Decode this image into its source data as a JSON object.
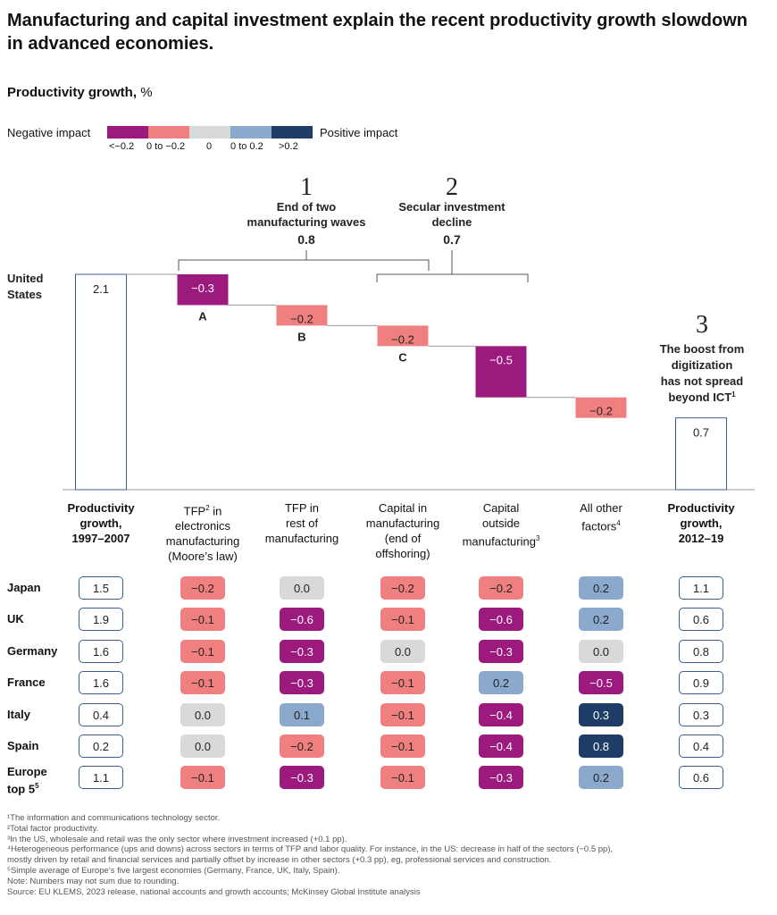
{
  "title": "Manufacturing and capital investment explain the recent productivity growth slowdown in advanced economies.",
  "subtitle_bold": "Productivity growth,",
  "subtitle_unit": "%",
  "legend": {
    "negative": "Negative impact",
    "positive": "Positive impact",
    "items": [
      {
        "label": "<−0.2",
        "color": "#9c1a7e"
      },
      {
        "label": "0 to −0.2",
        "color": "#f08080"
      },
      {
        "label": "0",
        "color": "#d9d9d9"
      },
      {
        "label": "0 to 0.2",
        "color": "#8aa9cc"
      },
      {
        "label": ">0.2",
        "color": "#1e3d66"
      }
    ]
  },
  "annotations": {
    "one": {
      "num": "1",
      "line1": "End of two",
      "line2": "manufacturing waves",
      "value": "0.8"
    },
    "two": {
      "num": "2",
      "line1": "Secular investment",
      "line2": "decline",
      "value": "0.7"
    },
    "three": {
      "num": "3",
      "line1": "The boost from",
      "line2": "digitization",
      "line3": "has not spread",
      "line4": "beyond ICT",
      "sup": "1"
    }
  },
  "chart_data": {
    "type": "waterfall",
    "row_label": [
      "United",
      "States"
    ],
    "bars": [
      {
        "label": "Productivity growth, 1997–2007",
        "value": 2.1,
        "display": "2.1",
        "kind": "total"
      },
      {
        "label": "TFP in electronics manufacturing (Moore’s law)",
        "value": -0.3,
        "display": "−0.3",
        "tag": "A",
        "color": "#9c1a7e"
      },
      {
        "label": "TFP in rest of manufacturing",
        "value": -0.2,
        "display": "−0.2",
        "tag": "B",
        "color": "#f08080"
      },
      {
        "label": "Capital in manufacturing (end of offshoring)",
        "value": -0.2,
        "display": "−0.2",
        "tag": "C",
        "color": "#f08080"
      },
      {
        "label": "Capital outside manufacturing",
        "value": -0.5,
        "display": "−0.5",
        "color": "#9c1a7e"
      },
      {
        "label": "All other factors",
        "value": -0.2,
        "display": "−0.2",
        "color": "#f08080"
      },
      {
        "label": "Productivity growth, 2012–19",
        "value": 0.7,
        "display": "0.7",
        "kind": "total"
      }
    ]
  },
  "columns": [
    {
      "lines": [
        "Productivity",
        "growth,",
        "1997–2007"
      ],
      "bold": true
    },
    {
      "lines": [
        "TFP",
        "in",
        "electronics",
        "manufacturing",
        "(Moore’s law)"
      ],
      "sup": "2",
      "bold": false
    },
    {
      "lines": [
        "TFP in",
        "rest of",
        "manufacturing"
      ],
      "bold": false
    },
    {
      "lines": [
        "Capital in",
        "manufacturing",
        "(end of",
        "offshoring)"
      ],
      "bold": false
    },
    {
      "lines": [
        "Capital",
        "outside",
        "manufacturing"
      ],
      "sup": "3",
      "bold": false
    },
    {
      "lines": [
        "All other",
        "factors"
      ],
      "sup": "4",
      "bold": false
    },
    {
      "lines": [
        "Productivity",
        "growth,",
        "2012–19"
      ],
      "bold": true
    }
  ],
  "table": [
    {
      "country": "Japan",
      "values": [
        "1.5",
        "−0.2",
        "0.0",
        "−0.2",
        "−0.2",
        "0.2",
        "1.1"
      ],
      "cats": [
        "o",
        "n1",
        "z",
        "n1",
        "n1",
        "p1",
        "o"
      ]
    },
    {
      "country": "UK",
      "values": [
        "1.9",
        "−0.1",
        "−0.6",
        "−0.1",
        "−0.6",
        "0.2",
        "0.6"
      ],
      "cats": [
        "o",
        "n1",
        "n2",
        "n1",
        "n2",
        "p1",
        "o"
      ]
    },
    {
      "country": "Germany",
      "values": [
        "1.6",
        "−0.1",
        "−0.3",
        "0.0",
        "−0.3",
        "0.0",
        "0.8"
      ],
      "cats": [
        "o",
        "n1",
        "n2",
        "z",
        "n2",
        "z",
        "o"
      ]
    },
    {
      "country": "France",
      "values": [
        "1.6",
        "−0.1",
        "−0.3",
        "−0.1",
        "0.2",
        "−0.5",
        "0.9"
      ],
      "cats": [
        "o",
        "n1",
        "n2",
        "n1",
        "p1",
        "n2",
        "o"
      ]
    },
    {
      "country": "Italy",
      "values": [
        "0.4",
        "0.0",
        "0.1",
        "−0.1",
        "−0.4",
        "0.3",
        "0.3"
      ],
      "cats": [
        "o",
        "z",
        "p1",
        "n1",
        "n2",
        "p2",
        "o"
      ]
    },
    {
      "country": "Spain",
      "values": [
        "0.2",
        "0.0",
        "−0.2",
        "−0.1",
        "−0.4",
        "0.8",
        "0.4"
      ],
      "cats": [
        "o",
        "z",
        "n1",
        "n1",
        "n2",
        "p2",
        "o"
      ]
    },
    {
      "country": "Europe top 5",
      "country_lines": [
        "Europe",
        "top 5"
      ],
      "sup": "5",
      "values": [
        "1.1",
        "−0.1",
        "−0.3",
        "−0.1",
        "−0.3",
        "0.2",
        "0.6"
      ],
      "cats": [
        "o",
        "n1",
        "n2",
        "n1",
        "n2",
        "p1",
        "o"
      ]
    }
  ],
  "footnotes": [
    "¹The information and communications technology sector.",
    "²Total factor productivity.",
    "³In the US, wholesale and retail was the only sector where investment increased (+0.1 pp).",
    "⁴Heterogeneous performance (ups and downs) across sectors in terms of TFP and labor quality. For instance, in the US: decrease in half of the sectors (−0.5 pp),",
    "  mostly driven by retail and financial services and partially offset by increase in other sectors (+0.3 pp), eg, professional services and construction.",
    "⁵Simple average of Europe’s five largest economies (Germany, France, UK, Italy, Spain).",
    "  Note: Numbers may not sum due to rounding.",
    "  Source: EU KLEMS, 2023 release, national accounts and growth accounts; McKinsey Global Institute analysis"
  ]
}
